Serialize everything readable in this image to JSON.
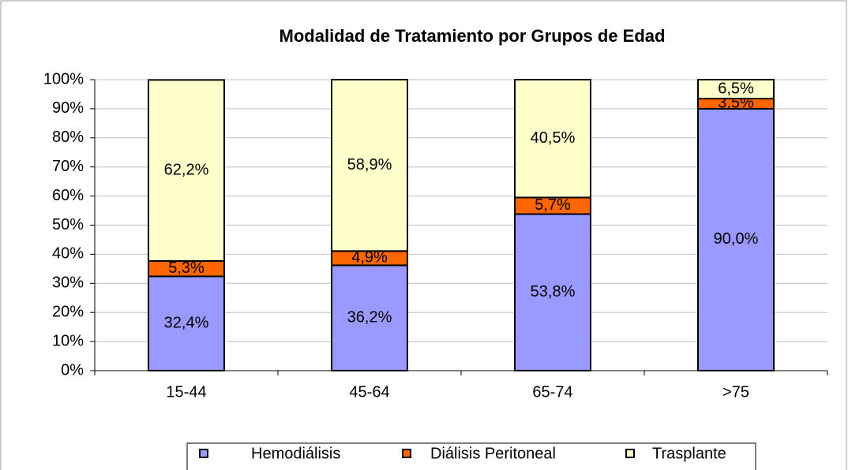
{
  "chart_data": {
    "type": "stacked_bar",
    "title": "Modalidad de Tratamiento por Grupos de Edad",
    "categories": [
      "15-44",
      "45-64",
      "65-74",
      ">75"
    ],
    "series": [
      {
        "name": "Hemodiálisis",
        "color": "#9999ff",
        "values": [
          32.4,
          36.2,
          53.8,
          90.0
        ],
        "value_labels": [
          "32,4%",
          "36,2%",
          "53,8%",
          "90,0%"
        ]
      },
      {
        "name": "Diálisis Peritoneal",
        "color": "#ff6600",
        "values": [
          5.3,
          4.9,
          5.7,
          3.5
        ],
        "value_labels": [
          "5,3%",
          "4,9%",
          "5,7%",
          "3,5%"
        ]
      },
      {
        "name": "Trasplante",
        "color": "#ffffcc",
        "values": [
          62.2,
          58.9,
          40.5,
          6.5
        ],
        "value_labels": [
          "62,2%",
          "58,9%",
          "40,5%",
          "6,5%"
        ]
      }
    ],
    "ylim": [
      0,
      100
    ],
    "yticks": [
      {
        "value": 0,
        "label": "0%"
      },
      {
        "value": 10,
        "label": "10%"
      },
      {
        "value": 20,
        "label": "20%"
      },
      {
        "value": 30,
        "label": "30%"
      },
      {
        "value": 40,
        "label": "40%"
      },
      {
        "value": 50,
        "label": "50%"
      },
      {
        "value": 60,
        "label": "60%"
      },
      {
        "value": 70,
        "label": "70%"
      },
      {
        "value": 80,
        "label": "80%"
      },
      {
        "value": 90,
        "label": "90%"
      },
      {
        "value": 100,
        "label": "100%"
      }
    ],
    "grid": true,
    "legend": "bottom"
  }
}
